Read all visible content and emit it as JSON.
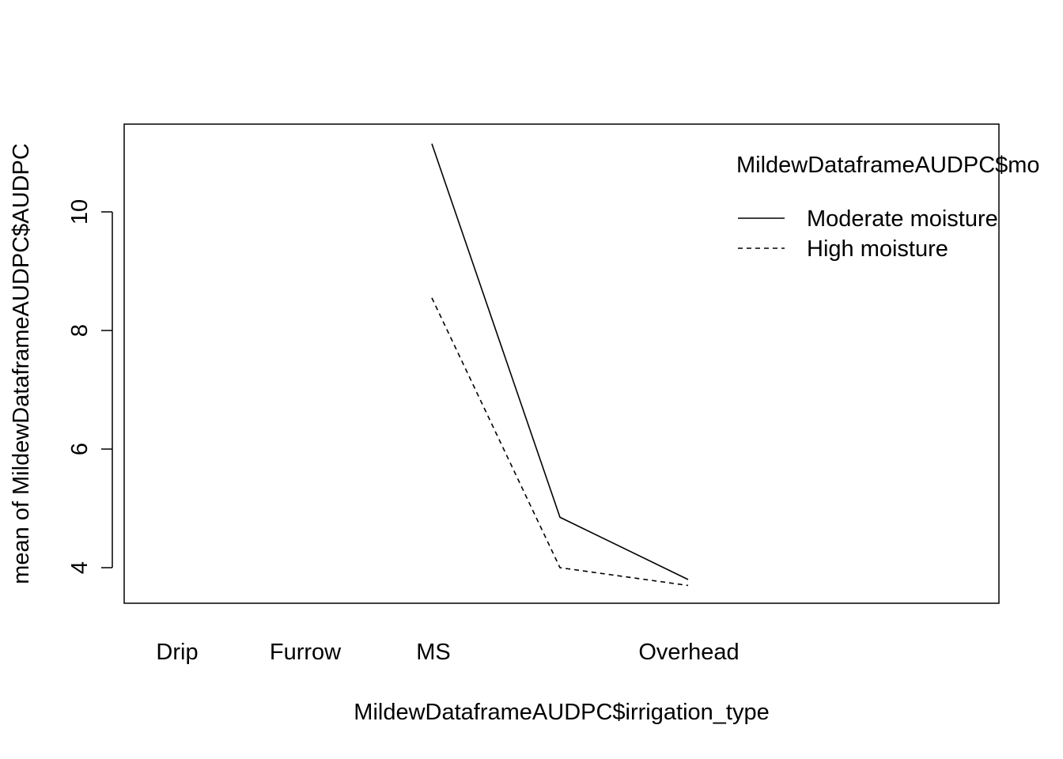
{
  "chart_data": {
    "type": "line",
    "xlabel": "MildewDataframeAUDPC$irrigation_type",
    "ylabel": "mean of  MildewDataframeAUDPC$AUDPC",
    "categories": [
      "Drip",
      "Furrow",
      "MS",
      "Overhead"
    ],
    "x_tick_labels": [
      "Drip",
      "Furrow",
      "MS",
      "Overhead"
    ],
    "y_ticks": [
      4,
      6,
      8,
      10
    ],
    "ylim": [
      3.4,
      11.5
    ],
    "legend_title": "MildewDataframeAUDPC$mo",
    "legend_position": "top-right",
    "grid": false,
    "series": [
      {
        "name": "Moderate moisture",
        "line_style": "solid",
        "color": "#000000",
        "x": [
          3,
          4,
          5
        ],
        "values": [
          11.15,
          4.85,
          3.8
        ]
      },
      {
        "name": "High moisture",
        "line_style": "dashed",
        "color": "#000000",
        "x": [
          3,
          4,
          5
        ],
        "values": [
          8.55,
          4.0,
          3.7
        ]
      }
    ]
  }
}
